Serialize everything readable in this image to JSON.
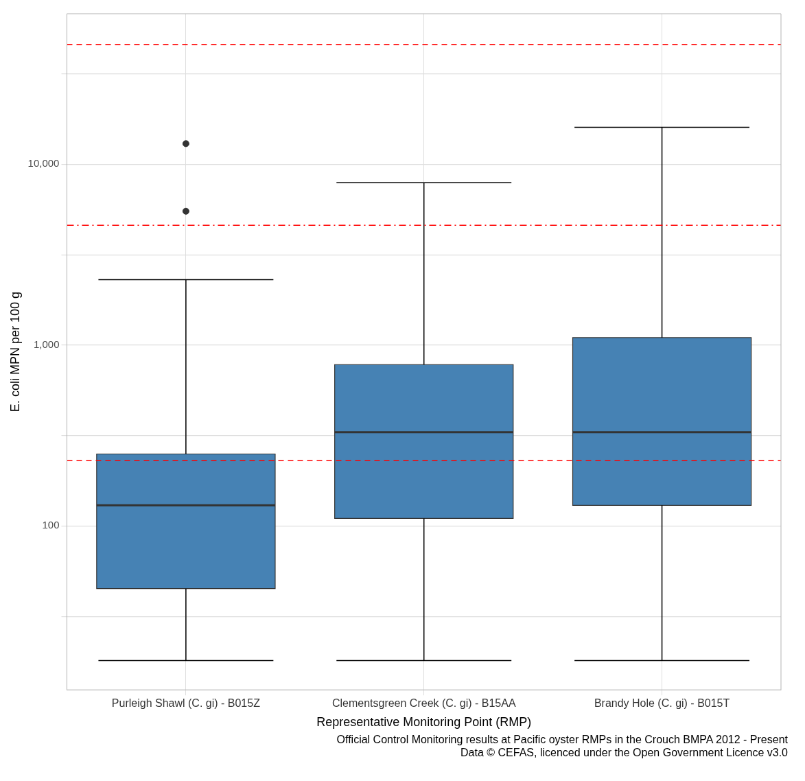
{
  "chart_data": {
    "type": "box",
    "categories": [
      "Purleigh Shawl (C. gi) - B015Z",
      "Clementsgreen Creek (C. gi) - B15AA",
      "Brandy Hole (C. gi) - B015T"
    ],
    "xlabel": "Representative Monitoring Point (RMP)",
    "ylabel": "E. coli MPN per 100 g",
    "log": "y",
    "ylim": [
      12.4,
      68000
    ],
    "yticks": [
      {
        "value": 31.6,
        "label": null
      },
      {
        "value": 100,
        "label": "100"
      },
      {
        "value": 316,
        "label": null
      },
      {
        "value": 1000,
        "label": "1,000"
      },
      {
        "value": 3160,
        "label": null
      },
      {
        "value": 10000,
        "label": "10,000"
      },
      {
        "value": 31600,
        "label": null
      }
    ],
    "grid": true,
    "series": [
      {
        "color": "#4682b4",
        "boxes": [
          {
            "low": 18,
            "q1": 45,
            "median": 130,
            "q3": 250,
            "high": 2300,
            "outliers": [
              5500,
              13000
            ]
          },
          {
            "low": 18,
            "q1": 110,
            "median": 330,
            "q3": 780,
            "high": 7900
          },
          {
            "low": 18,
            "q1": 130,
            "median": 330,
            "q3": 1100,
            "high": 16000
          }
        ]
      }
    ],
    "ref_lines": [
      {
        "axis": "y",
        "value": 46000,
        "color": "#ff0000",
        "line_style": "dashed"
      },
      {
        "axis": "y",
        "value": 4600,
        "color": "#ff0000",
        "line_style": "dashdot"
      },
      {
        "axis": "y",
        "value": 230,
        "color": "#ff0000",
        "line_style": "dashed"
      }
    ],
    "annotations": [
      "Official Control Monitoring results at Pacific oyster RMPs in the Crouch BMPA 2012 - Present",
      "Data © CEFAS, licenced under the Open Government Licence v3.0"
    ]
  }
}
